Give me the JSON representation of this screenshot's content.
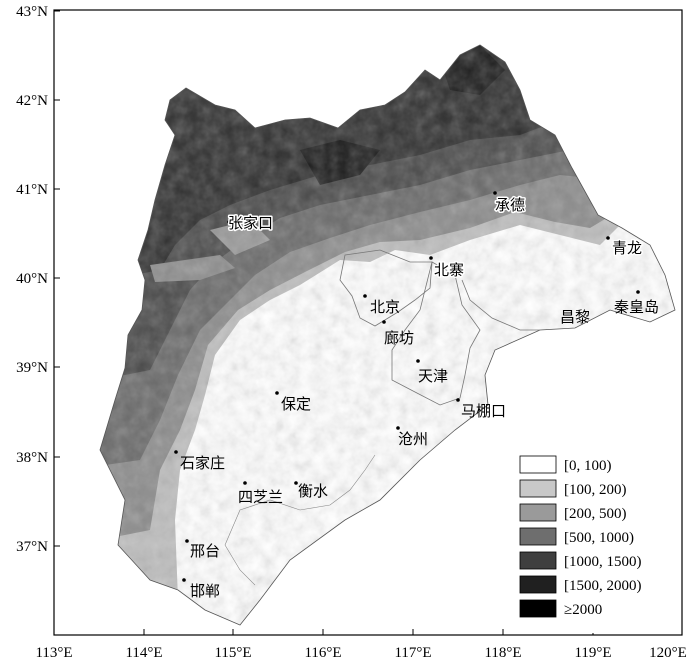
{
  "axes": {
    "y_ticks": [
      "43°N",
      "42°N",
      "41°N",
      "40°N",
      "39°N",
      "38°N",
      "37°N"
    ],
    "x_ticks": [
      "113°E",
      "114°E",
      "115°E",
      "116°E",
      "117°E",
      "118°E",
      "119°E",
      "120°E"
    ]
  },
  "cities": [
    {
      "name": "张家口"
    },
    {
      "name": "承德"
    },
    {
      "name": "青龙"
    },
    {
      "name": "北寨"
    },
    {
      "name": "北京"
    },
    {
      "name": "秦皇岛"
    },
    {
      "name": "昌黎"
    },
    {
      "name": "廊坊"
    },
    {
      "name": "天津"
    },
    {
      "name": "保定"
    },
    {
      "name": "马棚口"
    },
    {
      "name": "沧州"
    },
    {
      "name": "石家庄"
    },
    {
      "name": "衡水"
    },
    {
      "name": "四芝兰"
    },
    {
      "name": "邢台"
    },
    {
      "name": "邯郸"
    }
  ],
  "legend": [
    {
      "label": "[0, 100)",
      "color": "#ffffff"
    },
    {
      "label": "[100, 200)",
      "color": "#c8c8c8"
    },
    {
      "label": "[200, 500)",
      "color": "#9a9a9a"
    },
    {
      "label": "[500, 1000)",
      "color": "#6e6e6e"
    },
    {
      "label": "[1000, 1500)",
      "color": "#3f3f3f"
    },
    {
      "label": "[1500, 2000)",
      "color": "#202020"
    },
    {
      "label": "≥2000",
      "color": "#000000"
    }
  ]
}
